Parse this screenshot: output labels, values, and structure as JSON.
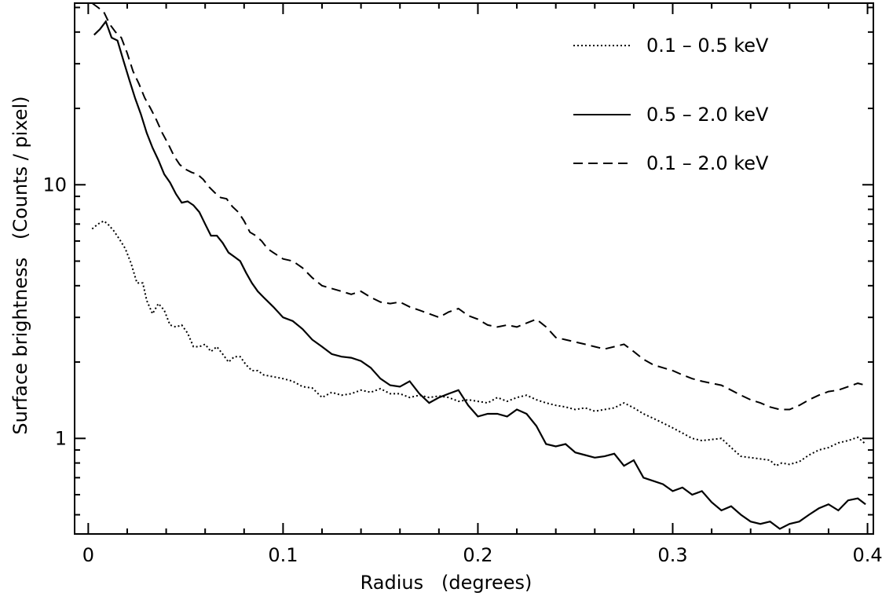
{
  "chart_data": {
    "type": "line",
    "title": "",
    "xlabel": "Radius   (degrees)",
    "ylabel": "Surface brightness   (Counts / pixel)",
    "xlim": [
      -0.007,
      0.403
    ],
    "ylim": [
      0.42,
      52
    ],
    "yscale": "log",
    "grid": false,
    "legend_position": "top-right",
    "x_ticks": [
      0,
      0.1,
      0.2,
      0.3,
      0.4
    ],
    "x_tick_labels": [
      "0",
      "0.1",
      "0.2",
      "0.3",
      "0.4"
    ],
    "y_ticks": [
      1,
      10
    ],
    "y_tick_labels": [
      "1",
      "10"
    ],
    "series": [
      {
        "name": "0.1 – 0.5 keV",
        "style": "dotted",
        "color": "#000000",
        "x": [
          0.002,
          0.005,
          0.008,
          0.01,
          0.013,
          0.016,
          0.019,
          0.022,
          0.025,
          0.028,
          0.03,
          0.033,
          0.036,
          0.039,
          0.042,
          0.045,
          0.048,
          0.051,
          0.054,
          0.057,
          0.06,
          0.063,
          0.066,
          0.069,
          0.072,
          0.075,
          0.078,
          0.081,
          0.084,
          0.087,
          0.09,
          0.095,
          0.1,
          0.105,
          0.11,
          0.115,
          0.12,
          0.125,
          0.13,
          0.135,
          0.14,
          0.145,
          0.15,
          0.155,
          0.16,
          0.165,
          0.17,
          0.175,
          0.18,
          0.185,
          0.19,
          0.195,
          0.2,
          0.205,
          0.21,
          0.215,
          0.22,
          0.225,
          0.23,
          0.235,
          0.24,
          0.245,
          0.25,
          0.255,
          0.26,
          0.265,
          0.27,
          0.275,
          0.28,
          0.285,
          0.29,
          0.295,
          0.3,
          0.305,
          0.31,
          0.315,
          0.32,
          0.325,
          0.33,
          0.335,
          0.34,
          0.345,
          0.35,
          0.353,
          0.356,
          0.36,
          0.365,
          0.37,
          0.375,
          0.38,
          0.385,
          0.39,
          0.395,
          0.399
        ],
        "y": [
          6.7,
          7.0,
          7.2,
          7.0,
          6.6,
          6.1,
          5.6,
          4.9,
          4.1,
          4.1,
          3.5,
          3.1,
          3.4,
          3.2,
          2.8,
          2.75,
          2.8,
          2.6,
          2.3,
          2.3,
          2.35,
          2.2,
          2.3,
          2.15,
          2.0,
          2.1,
          2.1,
          1.95,
          1.85,
          1.85,
          1.78,
          1.75,
          1.72,
          1.68,
          1.6,
          1.58,
          1.45,
          1.52,
          1.48,
          1.5,
          1.55,
          1.52,
          1.57,
          1.5,
          1.5,
          1.45,
          1.48,
          1.45,
          1.47,
          1.45,
          1.4,
          1.42,
          1.4,
          1.38,
          1.45,
          1.4,
          1.45,
          1.48,
          1.42,
          1.38,
          1.35,
          1.33,
          1.3,
          1.32,
          1.28,
          1.3,
          1.32,
          1.38,
          1.32,
          1.25,
          1.2,
          1.15,
          1.1,
          1.05,
          1.0,
          0.98,
          0.99,
          1.0,
          0.92,
          0.85,
          0.84,
          0.83,
          0.82,
          0.78,
          0.8,
          0.79,
          0.81,
          0.86,
          0.9,
          0.92,
          0.96,
          0.98,
          1.01,
          0.95
        ]
      },
      {
        "name": "0.5 – 2.0 keV",
        "style": "solid",
        "color": "#000000",
        "x": [
          0.003,
          0.006,
          0.009,
          0.012,
          0.015,
          0.018,
          0.021,
          0.024,
          0.027,
          0.03,
          0.033,
          0.036,
          0.039,
          0.042,
          0.045,
          0.048,
          0.051,
          0.054,
          0.057,
          0.06,
          0.063,
          0.066,
          0.069,
          0.072,
          0.075,
          0.078,
          0.081,
          0.084,
          0.087,
          0.09,
          0.095,
          0.1,
          0.105,
          0.11,
          0.115,
          0.12,
          0.125,
          0.13,
          0.135,
          0.14,
          0.145,
          0.15,
          0.155,
          0.16,
          0.165,
          0.17,
          0.175,
          0.18,
          0.185,
          0.19,
          0.195,
          0.2,
          0.205,
          0.21,
          0.215,
          0.22,
          0.225,
          0.23,
          0.235,
          0.24,
          0.245,
          0.25,
          0.255,
          0.26,
          0.265,
          0.27,
          0.275,
          0.28,
          0.285,
          0.29,
          0.295,
          0.3,
          0.305,
          0.31,
          0.315,
          0.32,
          0.325,
          0.33,
          0.335,
          0.34,
          0.345,
          0.35,
          0.355,
          0.36,
          0.365,
          0.37,
          0.375,
          0.38,
          0.385,
          0.39,
          0.395,
          0.399
        ],
        "y": [
          39,
          41,
          44,
          38,
          37,
          31,
          26,
          22,
          19,
          16,
          14,
          12.5,
          11,
          10.2,
          9.2,
          8.5,
          8.6,
          8.3,
          7.8,
          7.0,
          6.3,
          6.3,
          5.9,
          5.4,
          5.2,
          5.0,
          4.5,
          4.1,
          3.8,
          3.6,
          3.3,
          3.0,
          2.9,
          2.7,
          2.45,
          2.3,
          2.15,
          2.1,
          2.08,
          2.02,
          1.9,
          1.72,
          1.62,
          1.6,
          1.68,
          1.5,
          1.38,
          1.45,
          1.5,
          1.55,
          1.35,
          1.22,
          1.25,
          1.25,
          1.22,
          1.3,
          1.25,
          1.12,
          0.95,
          0.93,
          0.95,
          0.88,
          0.86,
          0.84,
          0.85,
          0.87,
          0.78,
          0.82,
          0.7,
          0.68,
          0.66,
          0.62,
          0.64,
          0.6,
          0.62,
          0.56,
          0.52,
          0.54,
          0.5,
          0.47,
          0.46,
          0.47,
          0.44,
          0.46,
          0.47,
          0.5,
          0.53,
          0.55,
          0.52,
          0.57,
          0.58,
          0.55
        ]
      },
      {
        "name": "0.1 – 2.0 keV",
        "style": "dashed",
        "color": "#000000",
        "x": [
          0.002,
          0.005,
          0.008,
          0.011,
          0.014,
          0.017,
          0.02,
          0.023,
          0.026,
          0.029,
          0.032,
          0.035,
          0.038,
          0.041,
          0.044,
          0.047,
          0.05,
          0.053,
          0.056,
          0.059,
          0.062,
          0.065,
          0.068,
          0.071,
          0.074,
          0.077,
          0.08,
          0.083,
          0.086,
          0.089,
          0.092,
          0.095,
          0.1,
          0.105,
          0.11,
          0.115,
          0.12,
          0.125,
          0.13,
          0.135,
          0.14,
          0.145,
          0.15,
          0.155,
          0.16,
          0.165,
          0.17,
          0.175,
          0.18,
          0.185,
          0.19,
          0.195,
          0.2,
          0.205,
          0.21,
          0.215,
          0.22,
          0.225,
          0.23,
          0.235,
          0.24,
          0.245,
          0.25,
          0.255,
          0.26,
          0.265,
          0.27,
          0.275,
          0.28,
          0.285,
          0.29,
          0.295,
          0.3,
          0.305,
          0.31,
          0.315,
          0.32,
          0.325,
          0.33,
          0.335,
          0.34,
          0.345,
          0.35,
          0.355,
          0.36,
          0.365,
          0.37,
          0.375,
          0.38,
          0.385,
          0.39,
          0.395,
          0.399
        ],
        "y": [
          52,
          50,
          48,
          43,
          40,
          38,
          33,
          28,
          25,
          22,
          20,
          18,
          16,
          14.5,
          13,
          12,
          11.5,
          11.2,
          11.0,
          10.5,
          9.8,
          9.3,
          8.9,
          8.8,
          8.2,
          7.8,
          7.2,
          6.5,
          6.3,
          6.0,
          5.6,
          5.4,
          5.1,
          5.0,
          4.7,
          4.3,
          4.0,
          3.9,
          3.8,
          3.7,
          3.8,
          3.6,
          3.45,
          3.4,
          3.45,
          3.3,
          3.2,
          3.1,
          3.0,
          3.15,
          3.25,
          3.05,
          2.95,
          2.8,
          2.75,
          2.8,
          2.75,
          2.85,
          2.95,
          2.75,
          2.5,
          2.45,
          2.4,
          2.35,
          2.3,
          2.25,
          2.3,
          2.35,
          2.2,
          2.05,
          1.95,
          1.9,
          1.85,
          1.78,
          1.72,
          1.68,
          1.65,
          1.62,
          1.55,
          1.48,
          1.42,
          1.38,
          1.33,
          1.3,
          1.3,
          1.35,
          1.42,
          1.48,
          1.53,
          1.55,
          1.6,
          1.65,
          1.62
        ]
      }
    ]
  }
}
